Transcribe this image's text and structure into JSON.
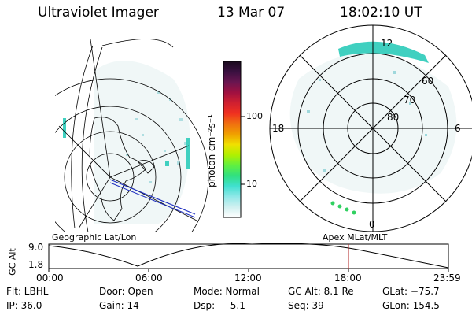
{
  "header": {
    "title": "Ultraviolet Imager",
    "date": "13 Mar 07",
    "time": "18:02:10 UT"
  },
  "colorbar": {
    "unit_label": "photon cm⁻²s⁻¹",
    "ticks": [
      "100",
      "10"
    ],
    "stops": [
      "#1a0a1e",
      "#3a1040",
      "#6a1550",
      "#a01040",
      "#d02030",
      "#f03020",
      "#f07010",
      "#f0a000",
      "#f0e000",
      "#b0f000",
      "#60f040",
      "#30e080",
      "#40e0d0",
      "#90e8e8",
      "#d0f0f0",
      "#ffffff"
    ]
  },
  "panels": {
    "left_caption": "Geographic Lat/Lon",
    "right_caption": "Apex MLat/MLT"
  },
  "polar": {
    "mlt_labels": {
      "top": "12",
      "left": "18",
      "right": "6",
      "bottom": "0"
    },
    "lat_labels": [
      "60",
      "70",
      "80"
    ]
  },
  "altitude_plot": {
    "axis_label": "GC Alt",
    "y_ticks": [
      "9.0",
      "1.8"
    ],
    "x_ticks": [
      "00:00",
      "06:00",
      "12:00",
      "18:00",
      "23:59"
    ],
    "marker_color": "#b02020"
  },
  "info": {
    "flt": "Flt: LBHL",
    "ip": "IP: 36.0",
    "door": "Door: Open",
    "gain": "Gain: 14",
    "mode": "Mode: Normal",
    "dsp": "Dsp:    -5.1",
    "gc_alt": "GC Alt: 8.1 Re",
    "seq": "Seq: 39",
    "glat": "GLat: −75.7",
    "glon": "GLon: 154.5"
  }
}
